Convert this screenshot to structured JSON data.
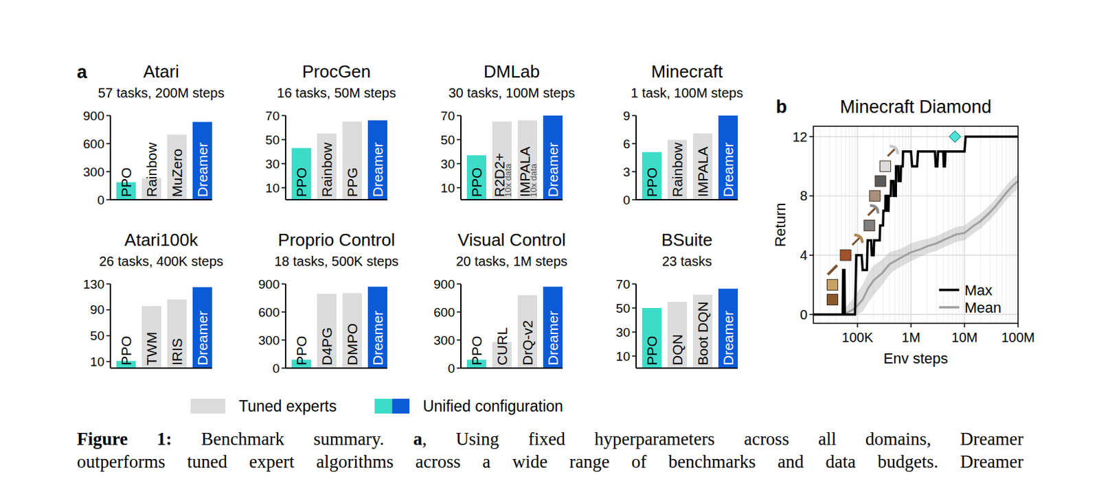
{
  "panel_labels": [
    "a",
    "b"
  ],
  "figure_legend": [
    {
      "name": "Tuned experts",
      "colors": [
        "#dcdcdc"
      ]
    },
    {
      "name": "Unified configuration",
      "colors": [
        "#3ddcc8",
        "#0b5ad6"
      ]
    }
  ],
  "caption": {
    "label": "Figure 1:",
    "title": "Benchmark summary.",
    "panel": "a",
    "lines": [
      ", Using fixed hyperparameters across all domains, Dreamer",
      "outperforms tuned expert algorithms across a wide range of benchmarks and data budgets. Dreamer"
    ]
  },
  "chart_data": [
    {
      "type": "bar",
      "title": "Atari",
      "subtitle": "57 tasks, 200M steps",
      "categories": [
        "PPO",
        "Rainbow",
        "MuZero",
        "Dreamer"
      ],
      "values": [
        187,
        232,
        697,
        832
      ],
      "colors": [
        "#3ddcc8",
        "#dcdcdc",
        "#dcdcdc",
        "#0b5ad6"
      ],
      "ylim": [
        0,
        900
      ],
      "yticks": [
        0,
        300,
        600,
        900
      ]
    },
    {
      "type": "bar",
      "title": "ProcGen",
      "subtitle": "16 tasks, 50M steps",
      "categories": [
        "PPO",
        "Rainbow",
        "PPG",
        "Dreamer"
      ],
      "values": [
        43,
        55,
        65,
        66
      ],
      "colors": [
        "#3ddcc8",
        "#dcdcdc",
        "#dcdcdc",
        "#0b5ad6"
      ],
      "ylim": [
        0,
        70
      ],
      "yticks": [
        10,
        30,
        50,
        70
      ]
    },
    {
      "type": "bar",
      "title": "DMLab",
      "subtitle": "30 tasks, 100M steps",
      "categories": [
        "PPO",
        "R2D2+",
        "IMPALA",
        "Dreamer"
      ],
      "values": [
        37,
        65,
        66,
        70
      ],
      "colors": [
        "#3ddcc8",
        "#dcdcdc",
        "#dcdcdc",
        "#0b5ad6"
      ],
      "ylim": [
        0,
        70
      ],
      "yticks": [
        10,
        30,
        50,
        70
      ],
      "annotations": [
        {
          "category": "R2D2+",
          "text": "10x data"
        },
        {
          "category": "IMPALA",
          "text": "10x data"
        }
      ]
    },
    {
      "type": "bar",
      "title": "Minecraft",
      "subtitle": "1 task, 100M steps",
      "categories": [
        "PPO",
        "Rainbow",
        "IMPALA",
        "Dreamer"
      ],
      "values": [
        5.1,
        6.4,
        7.1,
        9
      ],
      "colors": [
        "#3ddcc8",
        "#dcdcdc",
        "#dcdcdc",
        "#0b5ad6"
      ],
      "ylim": [
        0,
        9
      ],
      "yticks": [
        0,
        3,
        6,
        9
      ]
    },
    {
      "type": "bar",
      "title": "Atari100k",
      "subtitle": "26 tasks, 400K steps",
      "categories": [
        "PPO",
        "TWM",
        "IRIS",
        "Dreamer"
      ],
      "values": [
        11,
        96,
        106,
        125
      ],
      "colors": [
        "#3ddcc8",
        "#dcdcdc",
        "#dcdcdc",
        "#0b5ad6"
      ],
      "ylim": [
        0,
        130
      ],
      "yticks": [
        10,
        50,
        90,
        130
      ]
    },
    {
      "type": "bar",
      "title": "Proprio Control",
      "subtitle": "18 tasks, 500K steps",
      "categories": [
        "PPO",
        "D4PG",
        "DMPO",
        "Dreamer"
      ],
      "values": [
        90,
        795,
        802,
        870
      ],
      "colors": [
        "#3ddcc8",
        "#dcdcdc",
        "#dcdcdc",
        "#0b5ad6"
      ],
      "ylim": [
        0,
        900
      ],
      "yticks": [
        0,
        300,
        600,
        900
      ]
    },
    {
      "type": "bar",
      "title": "Visual Control",
      "subtitle": "20 tasks, 1M steps",
      "categories": [
        "PPO",
        "CURL",
        "DrQ-v2",
        "Dreamer"
      ],
      "values": [
        90,
        280,
        780,
        870
      ],
      "colors": [
        "#3ddcc8",
        "#dcdcdc",
        "#dcdcdc",
        "#0b5ad6"
      ],
      "ylim": [
        0,
        900
      ],
      "yticks": [
        0,
        300,
        600,
        900
      ]
    },
    {
      "type": "bar",
      "title": "BSuite",
      "subtitle": "23 tasks",
      "categories": [
        "PPO",
        "DQN",
        "Boot DQN",
        "Dreamer"
      ],
      "values": [
        50,
        55,
        61,
        66
      ],
      "colors": [
        "#3ddcc8",
        "#dcdcdc",
        "#dcdcdc",
        "#0b5ad6"
      ],
      "ylim": [
        0,
        70
      ],
      "yticks": [
        10,
        30,
        50,
        70
      ]
    },
    {
      "type": "line",
      "title": "Minecraft Diamond",
      "x_label": "Env steps",
      "y_label": "Return",
      "log": "x",
      "grid": true,
      "legend": "lower right",
      "xlim": [
        15000,
        100000000
      ],
      "ylim": [
        -0.6,
        12.7
      ],
      "xticks": [
        {
          "value": 100000,
          "label": "100K"
        },
        {
          "value": 1000000,
          "label": "1M"
        },
        {
          "value": 10000000,
          "label": "10M"
        },
        {
          "value": 100000000,
          "label": "100M"
        }
      ],
      "yticks": [
        0,
        4,
        8,
        12
      ],
      "series": [
        {
          "name": "Max",
          "color": "#000000",
          "x": [
            15000,
            53000,
            54000,
            57000,
            58000,
            90000,
            95000,
            120000,
            125000,
            150000,
            155000,
            180000,
            185000,
            200000,
            205000,
            260000,
            265000,
            300000,
            305000,
            330000,
            335000,
            360000,
            365000,
            380000,
            385000,
            420000,
            425000,
            470000,
            475000,
            520000,
            525000,
            580000,
            585000,
            640000,
            650000,
            700000,
            710000,
            1000000,
            1050000,
            1300000,
            1350000,
            2800000,
            2900000,
            3100000,
            3200000,
            4000000,
            4100000,
            4300000,
            4400000,
            10000000,
            10500000,
            100000000
          ],
          "values": [
            0,
            0,
            3,
            3,
            0,
            0,
            4,
            4,
            3,
            3,
            5,
            5,
            4,
            4,
            5,
            5,
            6,
            6,
            7,
            7,
            8,
            8,
            7,
            7,
            8,
            8,
            9,
            9,
            8,
            8,
            10,
            10,
            9,
            9,
            10,
            10,
            11,
            11,
            10,
            10,
            11,
            11,
            10,
            10,
            11,
            11,
            10,
            10,
            11,
            11,
            12,
            12
          ]
        },
        {
          "name": "Mean",
          "color": "#a0a0a0",
          "x": [
            55000,
            80000,
            100000,
            125000,
            160000,
            200000,
            290000,
            400000,
            500000,
            700000,
            1000000,
            1500000,
            2000000,
            3000000,
            4500000,
            7000000,
            10000000,
            15000000,
            20000000,
            30000000,
            40000000,
            60000000,
            80000000,
            100000000
          ],
          "values": [
            0,
            0.3,
            0.6,
            1,
            1.8,
            2.3,
            2.8,
            3.4,
            3.6,
            3.9,
            4.2,
            4.4,
            4.6,
            4.8,
            5.1,
            5.4,
            5.5,
            6,
            6.3,
            6.9,
            7.4,
            8.2,
            8.7,
            9
          ],
          "lower": [
            0,
            0,
            0,
            0.2,
            0.8,
            1.3,
            2,
            2.7,
            3,
            3.3,
            3.6,
            3.9,
            4.1,
            4.3,
            4.6,
            4.9,
            5,
            5.5,
            5.8,
            6.4,
            6.9,
            7.7,
            8.2,
            8.5
          ],
          "upper": [
            0.3,
            1,
            1.5,
            2,
            2.8,
            3.3,
            3.7,
            4.2,
            4.3,
            4.5,
            4.8,
            5,
            5.1,
            5.3,
            5.6,
            5.9,
            6,
            6.5,
            6.8,
            7.4,
            7.9,
            8.7,
            9.2,
            9.5
          ]
        }
      ]
    }
  ]
}
